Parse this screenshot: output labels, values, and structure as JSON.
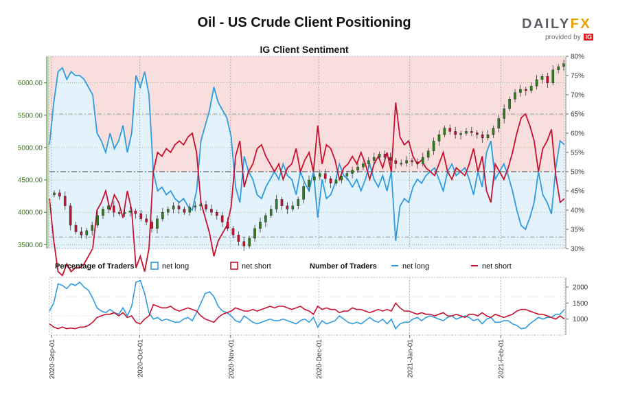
{
  "header": {
    "title": "Oil - US Crude Client Positioning",
    "subtitle": "IG Client Sentiment"
  },
  "branding": {
    "logo_text_main": "DAILY",
    "logo_text_fx": "FX",
    "provided_by": "provided by",
    "ig": "IG"
  },
  "colors": {
    "net_long": "#2e9be0",
    "net_short": "#c8102e",
    "candle_up": "#2f7d1e",
    "candle_down": "#c8102e",
    "short_zone": "#f9dede",
    "long_zone": "#e4f3fb",
    "grid": "#7aa86a"
  },
  "legend": {
    "pct_label": "Percentage of Traders",
    "num_label": "Number of Traders",
    "net_long": "net long",
    "net_short": "net short"
  },
  "chart_data": {
    "type": "line",
    "title": "Oil - US Crude Client Positioning",
    "subtitle": "IG Client Sentiment",
    "date_labels": [
      "2020-Sep-01",
      "2020-Oct-01",
      "2020-Nov-01",
      "2020-Dec-01",
      "2021-Jan-01",
      "2021-Feb-01"
    ],
    "date_label_days": [
      0,
      30,
      61,
      91,
      122,
      153
    ],
    "total_days": 174,
    "price": {
      "ylim": [
        3440,
        6410
      ],
      "ticks": [
        "3500.00",
        "4000.00",
        "4500.00",
        "5000.00",
        "5500.00",
        "6000.00"
      ],
      "tick_values": [
        3500,
        4000,
        4500,
        5000,
        5500,
        6000
      ],
      "closes_approx": [
        4300,
        4250,
        4100,
        3800,
        3700,
        3650,
        3720,
        3800,
        3950,
        4050,
        4100,
        4000,
        3980,
        4000,
        4020,
        3980,
        3900,
        3850,
        3750,
        3900,
        4000,
        4050,
        4100,
        4050,
        4000,
        4080,
        4100,
        4120,
        4050,
        4000,
        3950,
        3850,
        3750,
        3650,
        3550,
        3480,
        3600,
        3750,
        3850,
        3950,
        4050,
        4200,
        4100,
        4050,
        4100,
        4200,
        4400,
        4500,
        4550,
        4600,
        4520,
        4450,
        4500,
        4560,
        4600,
        4650,
        4700,
        4750,
        4800,
        4850,
        4900,
        4850,
        4800,
        4750,
        4760,
        4800,
        4780,
        4750,
        4850,
        4950,
        5100,
        5200,
        5300,
        5250,
        5200,
        5220,
        5250,
        5230,
        5200,
        5150,
        5200,
        5300,
        5450,
        5600,
        5750,
        5850,
        5900,
        5880,
        5950,
        6050,
        6100,
        6000,
        6200,
        6250,
        6300
      ]
    },
    "percentage": {
      "ylim": [
        30,
        80
      ],
      "ticks": [
        "30%",
        "35%",
        "40%",
        "45%",
        "50%",
        "55%",
        "60%",
        "65%",
        "70%",
        "75%",
        "80%"
      ],
      "tick_values": [
        30,
        35,
        40,
        45,
        50,
        55,
        60,
        65,
        70,
        75,
        80
      ],
      "net_long_approx": [
        57,
        68,
        76,
        77,
        74,
        76,
        75,
        75,
        74,
        72,
        70,
        60,
        58,
        55,
        60,
        56,
        58,
        62,
        55,
        60,
        75,
        72,
        76,
        70,
        50,
        45,
        46,
        44,
        45,
        43,
        42,
        43,
        41,
        40,
        45,
        58,
        62,
        66,
        72,
        68,
        66,
        64,
        59,
        46,
        42,
        54,
        50,
        48,
        44,
        43,
        46,
        48,
        50,
        48,
        52,
        49,
        48,
        44,
        50,
        47,
        45,
        50,
        38,
        48,
        43,
        44,
        47,
        52,
        49,
        48,
        46,
        48,
        45,
        48,
        52,
        48,
        46,
        49,
        45,
        50,
        32,
        41,
        43,
        42,
        46,
        48,
        47,
        49,
        50,
        51,
        48,
        45,
        50,
        52,
        49,
        50,
        51,
        48,
        44,
        50,
        46,
        55,
        58,
        48,
        50,
        52,
        49,
        45,
        40,
        36,
        35,
        38,
        42,
        50,
        44,
        42,
        39,
        51,
        58,
        57
      ]
    },
    "traders": {
      "ylim": [
        500,
        2300
      ],
      "ticks": [
        "1000",
        "1500",
        "2000"
      ],
      "tick_values": [
        1000,
        1500,
        2000
      ],
      "net_long_approx": [
        1250,
        1500,
        2100,
        2050,
        1950,
        2100,
        2050,
        2150,
        2000,
        1900,
        1650,
        1350,
        1250,
        1200,
        1300,
        1200,
        1150,
        1350,
        1100,
        1400,
        2150,
        2200,
        1800,
        1200,
        1000,
        1050,
        950,
        1000,
        950,
        900,
        900,
        1000,
        1050,
        950,
        1200,
        1500,
        1800,
        1850,
        1700,
        1400,
        1250,
        1200,
        1100,
        950,
        900,
        1100,
        1000,
        900,
        850,
        900,
        950,
        1000,
        950,
        950,
        1000,
        950,
        900,
        850,
        950,
        1000,
        900,
        1050,
        750,
        950,
        850,
        900,
        950,
        1100,
        1000,
        900,
        850,
        900,
        850,
        950,
        1050,
        950,
        900,
        1000,
        850,
        1000,
        700,
        850,
        900,
        900,
        1000,
        1050,
        950,
        1050,
        1100,
        1050,
        1000,
        950,
        1050,
        1100,
        1000,
        1050,
        1100,
        1050,
        950,
        1000,
        850,
        1000,
        1050,
        900,
        900,
        950,
        950,
        850,
        800,
        700,
        720,
        850,
        950,
        1050,
        1000,
        1050,
        1050,
        1150,
        1150,
        1300
      ],
      "net_short_approx": [
        850,
        750,
        700,
        750,
        700,
        720,
        700,
        750,
        750,
        800,
        900,
        1050,
        1100,
        1150,
        1150,
        1200,
        1100,
        1200,
        1050,
        1100,
        900,
        850,
        1000,
        1100,
        1450,
        1400,
        1350,
        1350,
        1400,
        1300,
        1250,
        1300,
        1350,
        1300,
        1250,
        1100,
        1000,
        950,
        900,
        1050,
        1150,
        1200,
        1250,
        1350,
        1300,
        1250,
        1250,
        1300,
        1250,
        1300,
        1350,
        1400,
        1350,
        1400,
        1400,
        1350,
        1300,
        1350,
        1400,
        1300,
        1250,
        1150,
        1400,
        1300,
        1350,
        1300,
        1300,
        1200,
        1250,
        1250,
        1350,
        1300,
        1300,
        1250,
        1200,
        1250,
        1300,
        1250,
        1300,
        1250,
        1500,
        1350,
        1250,
        1250,
        1200,
        1150,
        1200,
        1150,
        1150,
        1100,
        1150,
        1200,
        1100,
        1100,
        1150,
        1100,
        1050,
        1150,
        1150,
        1100,
        1200,
        1100,
        1050,
        1150,
        1100,
        1050,
        1100,
        1150,
        1250,
        1300,
        1300,
        1250,
        1200,
        1150,
        1150,
        1100,
        1050,
        1000,
        1100,
        1000
      ]
    }
  }
}
